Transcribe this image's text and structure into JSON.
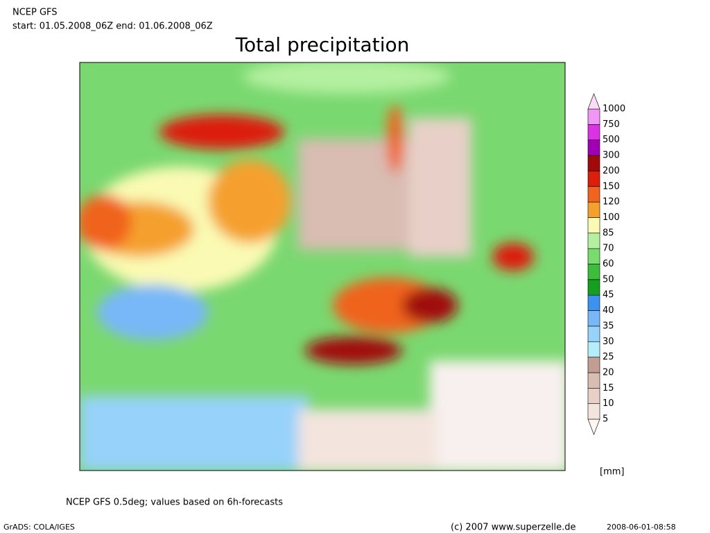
{
  "header": {
    "model": "NCEP GFS",
    "period": "start: 01.05.2008_06Z end: 01.06.2008_06Z",
    "title": "Total precipitation"
  },
  "colorbar": {
    "levels": [
      5,
      10,
      15,
      20,
      25,
      30,
      35,
      40,
      45,
      50,
      60,
      70,
      85,
      100,
      120,
      150,
      200,
      300,
      500,
      750,
      1000
    ],
    "colors": [
      "#fdf6f2",
      "#f3e4de",
      "#e8d0c8",
      "#d9bcb2",
      "#c49d92",
      "#b4eefa",
      "#96d2fa",
      "#78b8f8",
      "#3c92ee",
      "#14a01e",
      "#3cbe3c",
      "#78dc6e",
      "#b4f0a0",
      "#fafab4",
      "#f5a02d",
      "#f0641e",
      "#dc1e0a",
      "#a00a0a",
      "#a000b4",
      "#dc32e6",
      "#f096f5",
      "#fadcf8"
    ],
    "unit": "[mm]"
  },
  "footer": {
    "note": "NCEP GFS 0.5deg; values based on 6h-forecasts",
    "software": "GrADS: COLA/IGES",
    "copyright": "(c) 2007 www.superzelle.de",
    "timestamp": "2008-06-01-08:58"
  }
}
